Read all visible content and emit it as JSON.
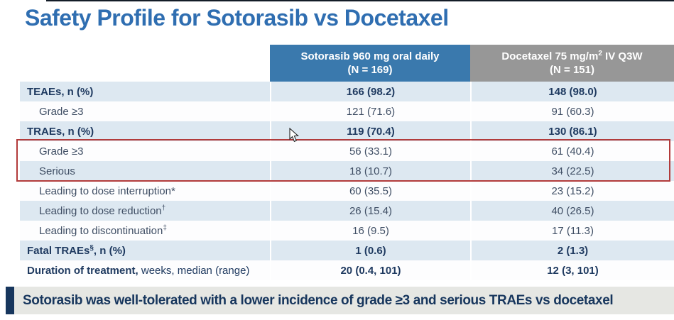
{
  "title": "Safety Profile for Sotorasib vs Docetaxel",
  "table": {
    "header": {
      "col1": {
        "line1": "Sotorasib 960 mg oral daily",
        "line2": "(N = 169)"
      },
      "col2": {
        "line1_pre": "Docetaxel 75 mg/m",
        "line1_sup": "2",
        "line1_post": " IV Q3W",
        "line2": "(N = 151)"
      }
    },
    "rows": [
      {
        "main": "TEAEs, n (%)",
        "sup": "",
        "post": "",
        "tail": "",
        "v1": "166 (98.2)",
        "v2": "148 (98.0)",
        "bold": true,
        "indent": false
      },
      {
        "main": "Grade ≥3",
        "sup": "",
        "post": "",
        "tail": "",
        "v1": "121 (71.6)",
        "v2": "91 (60.3)",
        "bold": false,
        "indent": true
      },
      {
        "main": "TRAEs, n (%)",
        "sup": "",
        "post": "",
        "tail": "",
        "v1": "119 (70.4)",
        "v2": "130 (86.1)",
        "bold": true,
        "indent": false
      },
      {
        "main": "Grade ≥3",
        "sup": "",
        "post": "",
        "tail": "",
        "v1": "56 (33.1)",
        "v2": "61 (40.4)",
        "bold": false,
        "indent": true
      },
      {
        "main": "Serious",
        "sup": "",
        "post": "",
        "tail": "",
        "v1": "18 (10.7)",
        "v2": "34 (22.5)",
        "bold": false,
        "indent": true
      },
      {
        "main": "Leading to dose interruption*",
        "sup": "",
        "post": "",
        "tail": "",
        "v1": "60 (35.5)",
        "v2": "23 (15.2)",
        "bold": false,
        "indent": true
      },
      {
        "main": "Leading to dose reduction",
        "sup": "†",
        "post": "",
        "tail": "",
        "v1": "26 (15.4)",
        "v2": "40 (26.5)",
        "bold": false,
        "indent": true
      },
      {
        "main": "Leading to discontinuation",
        "sup": "‡",
        "post": "",
        "tail": "",
        "v1": "16 (9.5)",
        "v2": "17 (11.3)",
        "bold": false,
        "indent": true
      },
      {
        "main": "Fatal TRAEs",
        "sup": "§",
        "post": ", n (%)",
        "tail": "",
        "v1": "1 (0.6)",
        "v2": "2 (1.3)",
        "bold": true,
        "indent": false
      },
      {
        "main": "Duration of treatment,",
        "sup": "",
        "post": "",
        "tail": " weeks, median (range)",
        "v1": "20 (0.4, 101)",
        "v2": "12 (3, 101)",
        "bold": true,
        "indent": false
      }
    ]
  },
  "highlight": {
    "color": "#b23b3b",
    "rows_highlighted": "Grade ≥3; Serious"
  },
  "banner": {
    "text": "Sotorasib was well-tolerated with a lower incidence of grade ≥3 and serious TRAEs vs docetaxel"
  },
  "colors": {
    "title_blue": "#2f6eb1",
    "header_blue": "#3a79ad",
    "header_gray": "#979797",
    "row_light_blue": "#dde8f1",
    "row_white": "#fdfdfe",
    "navy_text": "#1f3a60",
    "banner_navy": "#17365d",
    "banner_bg": "#e6e7e3"
  }
}
